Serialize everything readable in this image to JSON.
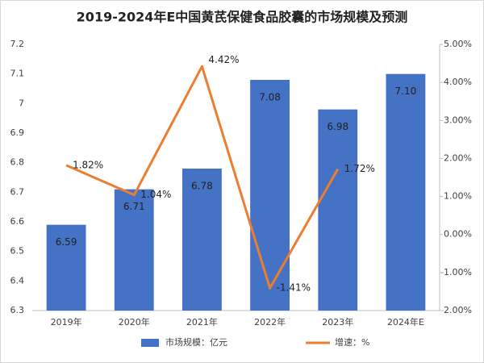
{
  "chart_data": {
    "type": "bar-line",
    "title": "2019-2024年E中国黄芪保健食品胶囊的市场规模及预测",
    "categories": [
      "2019年",
      "2020年",
      "2021年",
      "2022年",
      "2023年",
      "2024年E"
    ],
    "series": [
      {
        "name": "市场规模：亿元",
        "type": "bar",
        "color": "#4472c4",
        "values": [
          6.59,
          6.71,
          6.78,
          7.08,
          6.98,
          7.1
        ],
        "value_labels": [
          "6.59",
          "6.71",
          "6.78",
          "7.08",
          "6.98",
          "7.10"
        ]
      },
      {
        "name": "增速：%",
        "type": "line",
        "axis": "y2",
        "color": "#ed7d31",
        "values": [
          1.82,
          1.04,
          4.42,
          -1.41,
          1.72,
          null
        ],
        "value_labels": [
          "1.82%",
          "1.04%",
          "4.42%",
          "-1.41%",
          "1.72%",
          null
        ]
      }
    ],
    "ylim": [
      6.3,
      7.2
    ],
    "yticks": [
      6.3,
      6.4,
      6.5,
      6.6,
      6.7,
      6.8,
      6.9,
      7,
      7.1,
      7.2
    ],
    "y2lim": [
      -2,
      5
    ],
    "y2ticks": [
      {
        "value": -2,
        "label": "-2.00%"
      },
      {
        "value": -1,
        "label": "-1.00%"
      },
      {
        "value": 0,
        "label": "0.00%"
      },
      {
        "value": 1,
        "label": "1.00%"
      },
      {
        "value": 2,
        "label": "2.00%"
      },
      {
        "value": 3,
        "label": "3.00%"
      },
      {
        "value": 4,
        "label": "4.00%"
      },
      {
        "value": 5,
        "label": "5.00%"
      }
    ],
    "legend": "bottom"
  }
}
